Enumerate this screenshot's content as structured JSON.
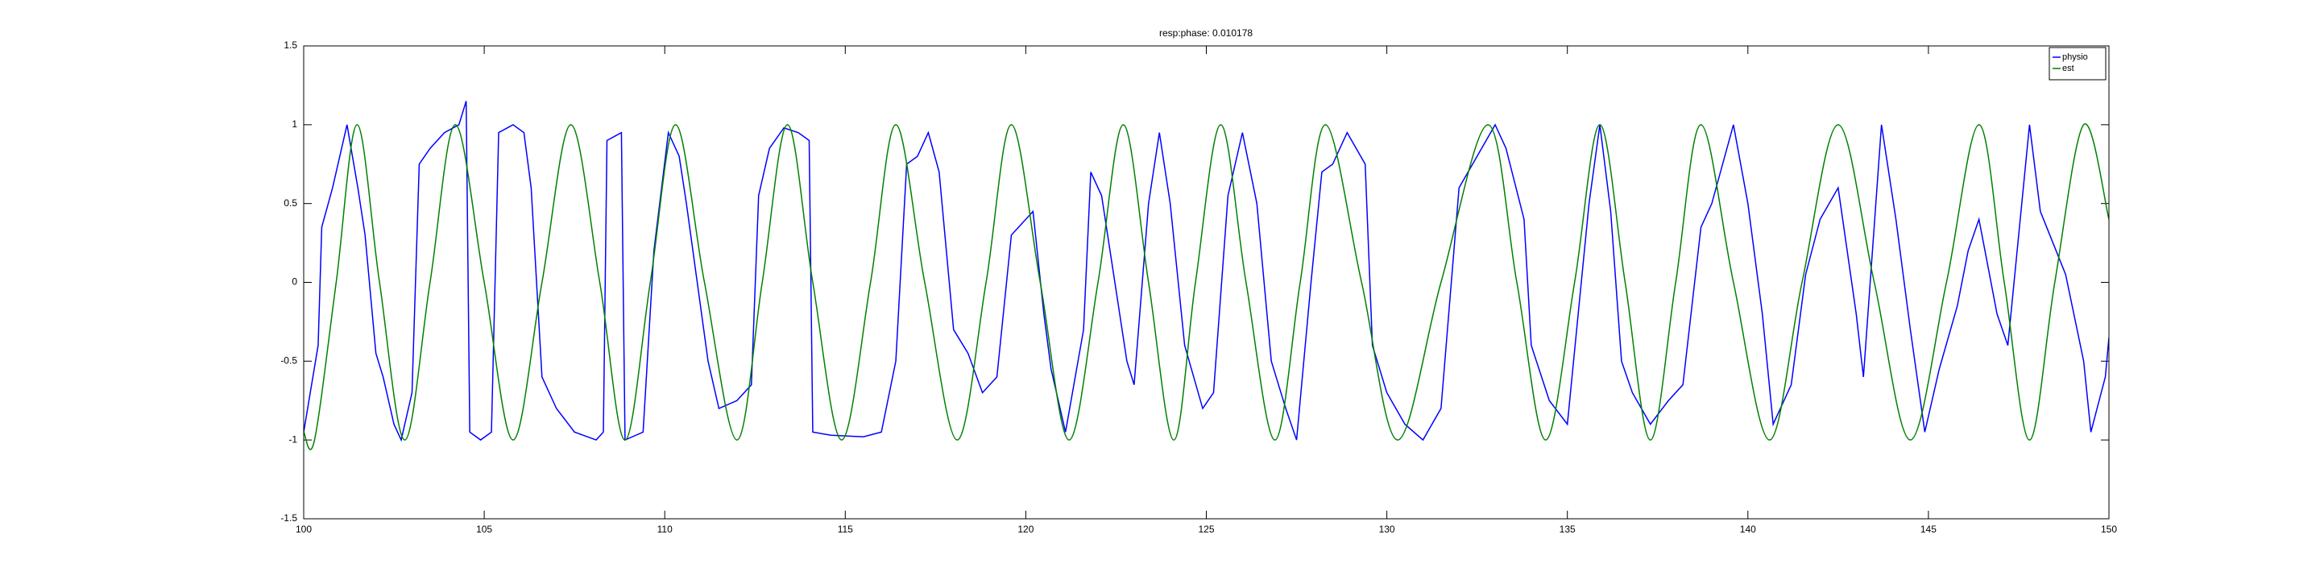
{
  "chart_data": {
    "type": "line",
    "title": "resp:phase: 0.010178",
    "xlim": [
      100,
      150
    ],
    "xticks": [
      100,
      105,
      110,
      115,
      120,
      125,
      130,
      135,
      140,
      145,
      150
    ],
    "ylim": [
      -1.5,
      1.5
    ],
    "yticks": [
      -1.5,
      -1,
      -0.5,
      0,
      0.5,
      1,
      1.5
    ],
    "grid": false,
    "legend": "top-right",
    "series": [
      {
        "name": "physio",
        "color": "#0000ff",
        "smooth": false,
        "x": [
          100,
          100.4,
          100.5,
          100.8,
          101.2,
          101.5,
          101.7,
          102.0,
          102.2,
          102.5,
          102.7,
          103,
          103.2,
          103.5,
          103.9,
          104.3,
          104.5,
          104.6,
          104.9,
          105.2,
          105.4,
          105.8,
          106.1,
          106.3,
          106.6,
          107,
          107.5,
          108.1,
          108.3,
          108.4,
          108.8,
          108.9,
          109.4,
          109.7,
          110.1,
          110.4,
          110.6,
          111.2,
          111.5,
          112,
          112.4,
          112.6,
          112.9,
          113.3,
          113.7,
          114,
          114.1,
          114.6,
          115.5,
          116,
          116.4,
          116.7,
          117,
          117.3,
          117.6,
          118,
          118.4,
          118.8,
          119.2,
          119.6,
          120.2,
          120.5,
          120.7,
          121.1,
          121.6,
          121.8,
          122.1,
          122.8,
          123,
          123.4,
          123.7,
          124,
          124.4,
          124.9,
          125.2,
          125.6,
          126,
          126.4,
          126.8,
          127.2,
          127.5,
          127.9,
          128.2,
          128.5,
          128.9,
          129.4,
          129.6,
          130,
          130.5,
          131,
          131.5,
          132,
          132.5,
          133,
          133.3,
          133.8,
          134,
          134.5,
          135,
          135.6,
          135.9,
          136.2,
          136.5,
          136.8,
          137.3,
          137.8,
          138.2,
          138.7,
          139.0,
          139.6,
          140,
          140.4,
          140.7,
          141.2,
          141.6,
          142,
          142.5,
          143,
          143.2,
          143.7,
          144.1,
          144.5,
          144.9,
          145.3,
          145.8,
          146.1,
          146.4,
          146.9,
          147.2,
          147.8,
          148.1,
          148.8,
          149.3,
          149.5,
          149.9,
          150
        ],
        "values": [
          -0.95,
          -0.4,
          0.35,
          0.6,
          1.0,
          0.6,
          0.3,
          -0.45,
          -0.6,
          -0.9,
          -1.0,
          -0.7,
          0.75,
          0.85,
          0.95,
          1.0,
          1.15,
          -0.95,
          -1.0,
          -0.95,
          0.95,
          1.0,
          0.95,
          0.6,
          -0.6,
          -0.8,
          -0.95,
          -1.0,
          -0.95,
          0.9,
          0.95,
          -1.0,
          -0.95,
          0.2,
          0.95,
          0.8,
          0.5,
          -0.5,
          -0.8,
          -0.75,
          -0.65,
          0.55,
          0.85,
          0.98,
          0.95,
          0.9,
          -0.95,
          -0.97,
          -0.98,
          -0.95,
          -0.5,
          0.75,
          0.8,
          0.95,
          0.7,
          -0.3,
          -0.45,
          -0.7,
          -0.6,
          0.3,
          0.45,
          -0.2,
          -0.55,
          -0.95,
          -0.3,
          0.7,
          0.55,
          -0.5,
          -0.65,
          0.5,
          0.95,
          0.5,
          -0.4,
          -0.8,
          -0.7,
          0.55,
          0.95,
          0.5,
          -0.5,
          -0.8,
          -1.0,
          0.0,
          0.7,
          0.75,
          0.95,
          0.75,
          -0.4,
          -0.7,
          -0.9,
          -1.0,
          -0.8,
          0.6,
          0.8,
          1.0,
          0.85,
          0.4,
          -0.4,
          -0.75,
          -0.9,
          0.5,
          1.0,
          0.45,
          -0.5,
          -0.7,
          -0.9,
          -0.75,
          -0.65,
          0.35,
          0.5,
          1.0,
          0.5,
          -0.2,
          -0.9,
          -0.65,
          0.05,
          0.4,
          0.6,
          -0.2,
          -0.6,
          1.0,
          0.4,
          -0.3,
          -0.95,
          -0.55,
          -0.15,
          0.2,
          0.4,
          -0.2,
          -0.4,
          1.0,
          0.45,
          0.05,
          -0.5,
          -0.95,
          -0.6,
          -0.35
        ]
      },
      {
        "name": "est",
        "color": "#008000",
        "smooth": true,
        "x": [
          100,
          100.3,
          100.9,
          101.48,
          102.1,
          102.8,
          103.5,
          104.2,
          105,
          105.8,
          106.6,
          107.4,
          108.2,
          108.9,
          109.6,
          110.3,
          111.1,
          112,
          112.7,
          113.4,
          114.1,
          114.9,
          115.7,
          116.4,
          117.2,
          118.1,
          118.9,
          119.6,
          120.4,
          121.2,
          122,
          122.7,
          123.4,
          124.1,
          124.7,
          125.4,
          126.1,
          126.9,
          127.6,
          128.3,
          129.3,
          130.3,
          131.5,
          132.8,
          133.6,
          134.4,
          135.2,
          135.9,
          136.6,
          137.3,
          138,
          138.7,
          139.6,
          140.6,
          141.5,
          142.5,
          143.5,
          144.5,
          145.5,
          146.4,
          147.1,
          147.8,
          148.5,
          149.3,
          150
        ],
        "values": [
          -0.95,
          -1,
          0,
          1,
          0,
          -1,
          0,
          1,
          0,
          -1,
          0,
          1,
          0,
          -1,
          0,
          1,
          0,
          -1,
          0,
          1,
          0,
          -1,
          0,
          1,
          0,
          -1,
          0,
          1,
          0,
          -1,
          0,
          1,
          0,
          -1,
          0,
          1,
          0,
          -1,
          0,
          1,
          0,
          -1,
          0,
          1,
          0,
          -1,
          0,
          1,
          0,
          -1,
          0,
          1,
          0,
          -1,
          0,
          1,
          0,
          -1,
          0,
          1,
          0,
          -1,
          0,
          1,
          0.4
        ]
      }
    ]
  }
}
